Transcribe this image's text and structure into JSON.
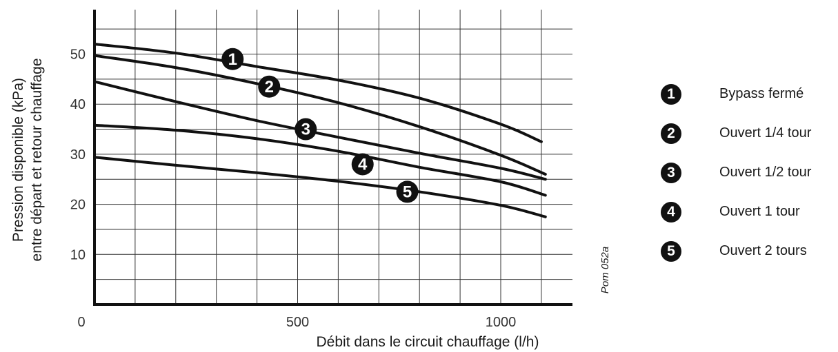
{
  "reference_code": "Pom 052a",
  "chart_data": {
    "type": "line",
    "xlabel": "Débit dans le circuit chauffage (l/h)",
    "ylabel": [
      "Pression disponible (kPa)",
      "entre départ et retour chauffage"
    ],
    "xlim": [
      0,
      1200
    ],
    "ylim": [
      0,
      60
    ],
    "x_ticks": [
      0,
      500,
      1000
    ],
    "y_ticks": [
      10,
      20,
      30,
      40,
      50
    ],
    "grid": true,
    "legend_position": "right",
    "series": [
      {
        "name": "Bypass fermé",
        "marker": "1",
        "marker_at": [
          340,
          49
        ],
        "points": [
          [
            0,
            52
          ],
          [
            200,
            50.2
          ],
          [
            400,
            47.5
          ],
          [
            600,
            44.8
          ],
          [
            800,
            41.2
          ],
          [
            1000,
            36
          ],
          [
            1100,
            32.5
          ]
        ]
      },
      {
        "name": "Ouvert 1/4 tour",
        "marker": "2",
        "marker_at": [
          430,
          43.5
        ],
        "points": [
          [
            0,
            49.7
          ],
          [
            200,
            47.3
          ],
          [
            400,
            44.1
          ],
          [
            600,
            40.3
          ],
          [
            800,
            35.5
          ],
          [
            1000,
            29.8
          ],
          [
            1110,
            26
          ]
        ]
      },
      {
        "name": "Ouvert 1/2 tour",
        "marker": "3",
        "marker_at": [
          520,
          35
        ],
        "points": [
          [
            0,
            44.5
          ],
          [
            200,
            40.5
          ],
          [
            400,
            36.7
          ],
          [
            600,
            33.4
          ],
          [
            800,
            30.2
          ],
          [
            1000,
            27.2
          ],
          [
            1110,
            25
          ]
        ]
      },
      {
        "name": "Ouvert 1 tour",
        "marker": "4",
        "marker_at": [
          660,
          28
        ],
        "points": [
          [
            0,
            35.8
          ],
          [
            200,
            34.8
          ],
          [
            400,
            33.1
          ],
          [
            600,
            30.6
          ],
          [
            800,
            27.4
          ],
          [
            1000,
            24.5
          ],
          [
            1110,
            21.8
          ]
        ]
      },
      {
        "name": "Ouvert 2 tours",
        "marker": "5",
        "marker_at": [
          770,
          22.5
        ],
        "points": [
          [
            0,
            29.4
          ],
          [
            200,
            27.8
          ],
          [
            400,
            26.3
          ],
          [
            600,
            24.6
          ],
          [
            800,
            22.5
          ],
          [
            1000,
            19.8
          ],
          [
            1110,
            17.5
          ]
        ]
      }
    ]
  }
}
